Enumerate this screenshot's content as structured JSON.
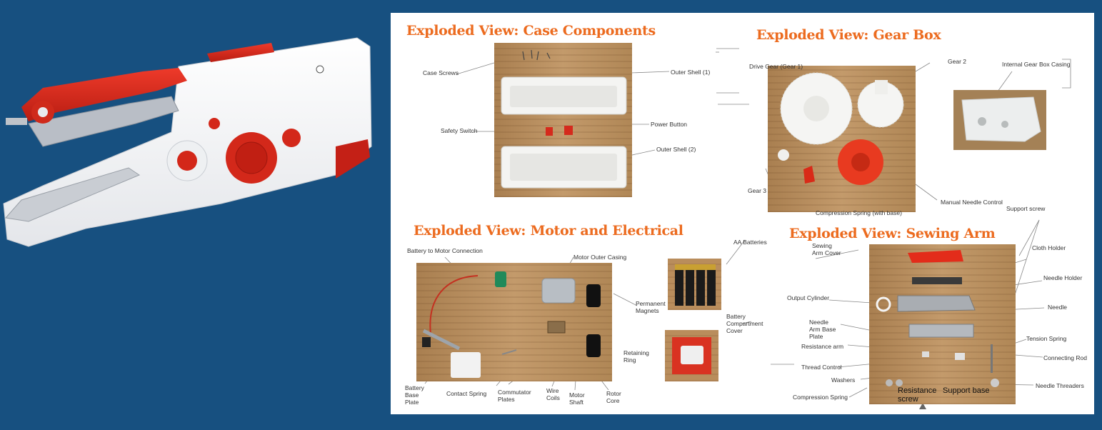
{
  "sections": {
    "case": {
      "title": "Exploded View: Case Components",
      "labels": [
        "Case Screws",
        "Outer Shell (1)",
        "Safety Switch",
        "Power Button",
        "Outer Shell (2)"
      ]
    },
    "gear": {
      "title": "Exploded View: Gear Box",
      "labels": [
        "Drive Gear (Gear 1)",
        "Gear 2",
        "Internal Gear Box Casing",
        "Gear 3",
        "Compression Spring (with base)",
        "Manual Needle Control"
      ]
    },
    "motor": {
      "title": "Exploded View: Motor and Electrical",
      "labels": [
        "Battery to Motor Connection",
        "Motor Outer Casing",
        "Permanent Magnets",
        "AA Batteries",
        "Battery Compartment Cover",
        "Retaining Ring",
        "Battery Base Plate",
        "Contact Spring",
        "Commutator Plates",
        "Wire Coils",
        "Motor Shaft",
        "Rotor Core"
      ]
    },
    "arm": {
      "title": "Exploded View: Sewing Arm",
      "labels": [
        "Support screw",
        "Sewing Arm Cover",
        "Cloth Holder",
        "Needle Holder",
        "Output Cylinder",
        "Needle",
        "Needle Arm Base Plate",
        "Tension Spring",
        "Resistance arm",
        "Connecting Rod",
        "Thread Control",
        "Washers",
        "Needle Threaders",
        "Compression Spring",
        "Resistance screw",
        "Support base"
      ]
    }
  },
  "colors": {
    "background": "#175080",
    "title_orange": "#ec6b1f",
    "machine_red": "#d6281b"
  }
}
